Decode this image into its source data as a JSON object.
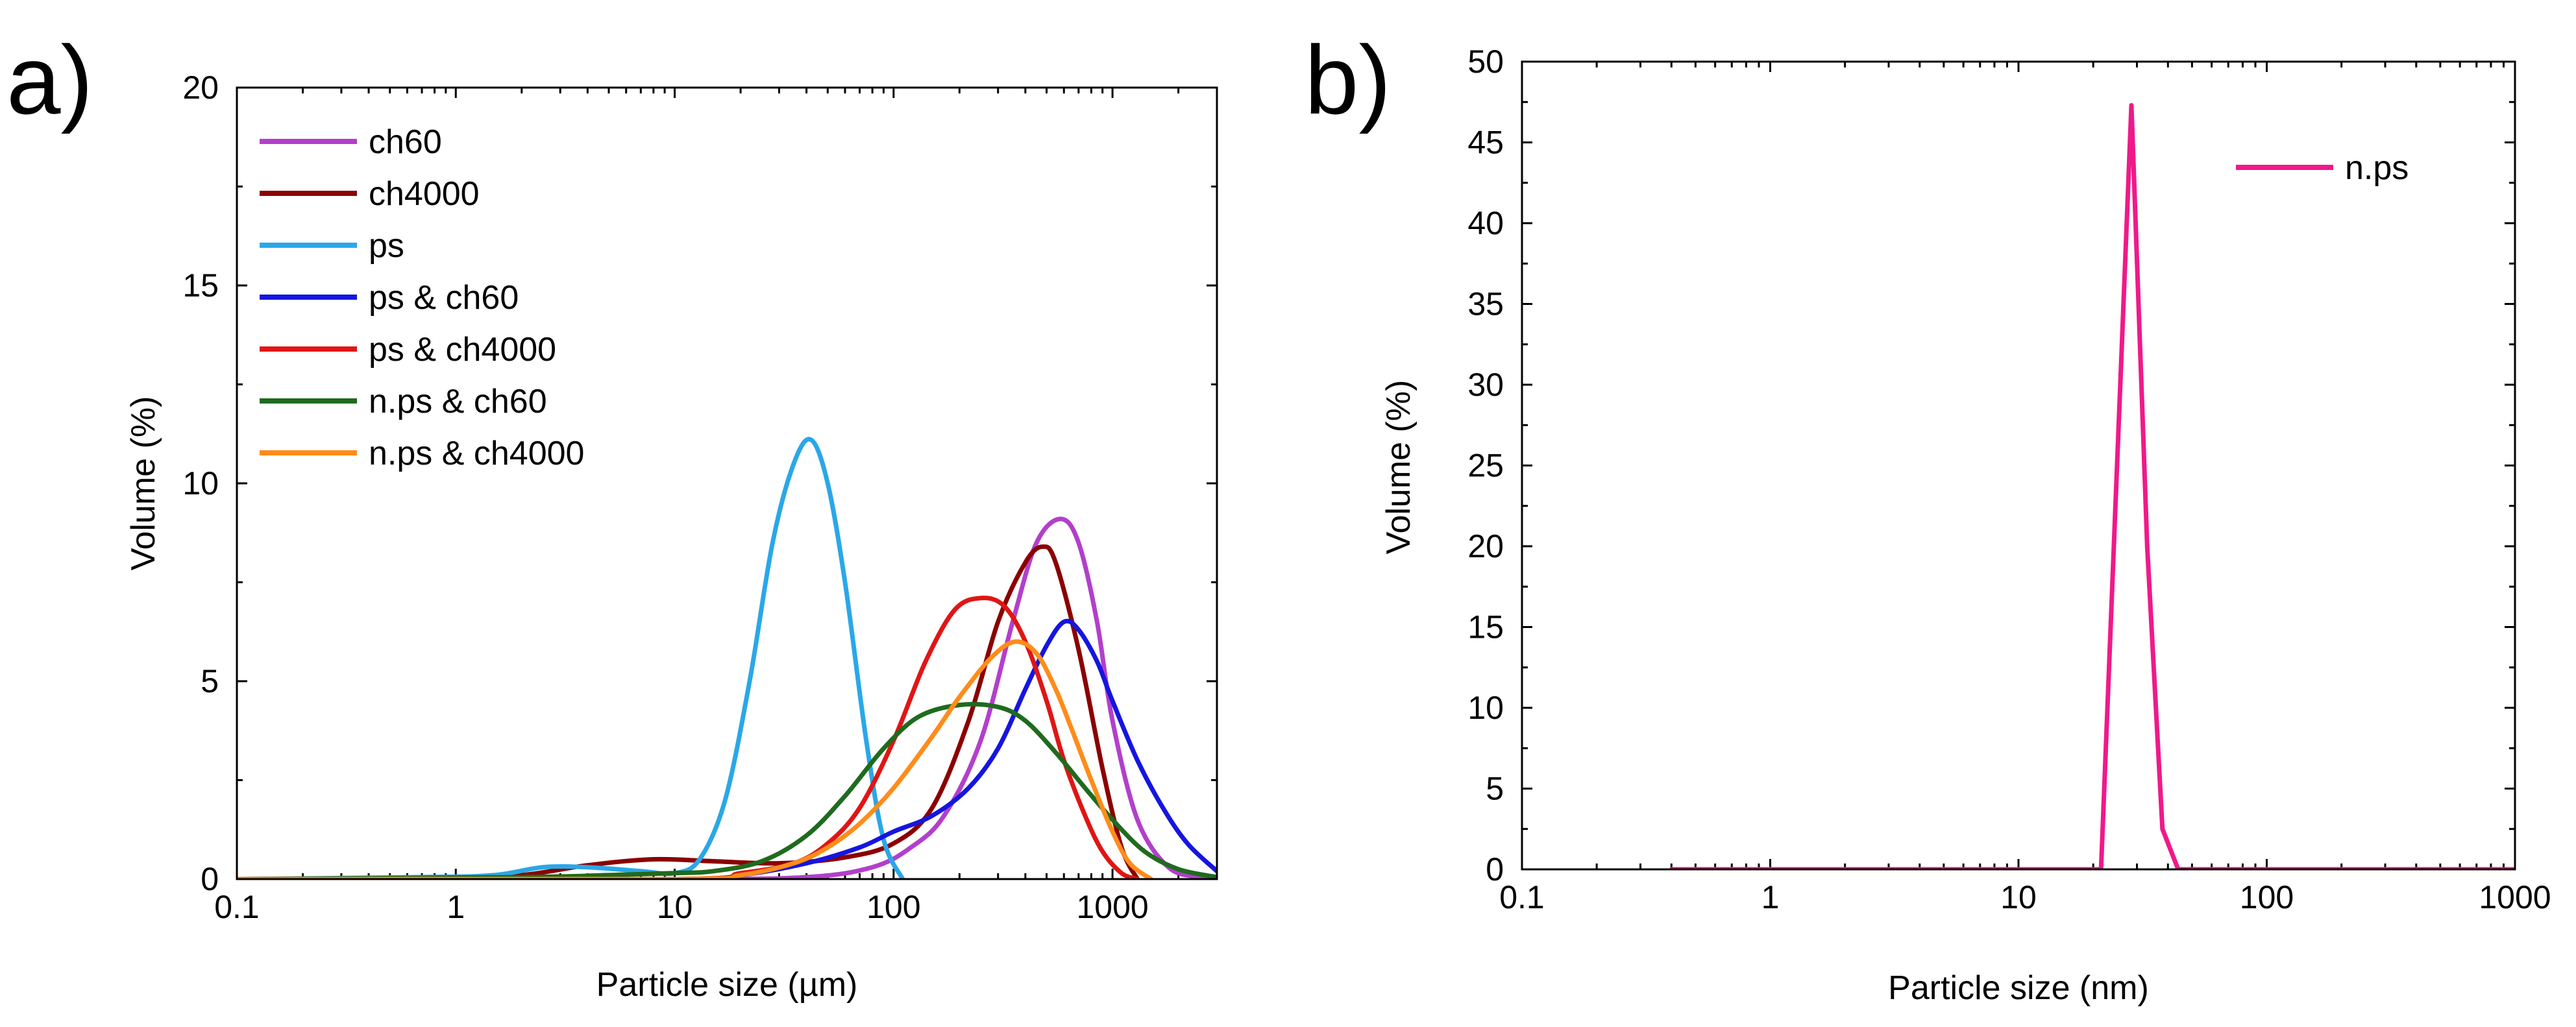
{
  "chart_data": [
    {
      "panel_label": "a)",
      "type": "line",
      "xscale": "log",
      "xlim": [
        0.1,
        3000
      ],
      "ylim": [
        0,
        20
      ],
      "xticks": [
        0.1,
        1,
        10,
        100,
        1000
      ],
      "xtick_labels": [
        "0.1",
        "1",
        "10",
        "100",
        "1000"
      ],
      "yticks": [
        0,
        5,
        10,
        15,
        20
      ],
      "ytick_labels": [
        "0",
        "5",
        "10",
        "15",
        "20"
      ],
      "xlabel": "Particle size (µm)",
      "ylabel": "Volume (%)",
      "legend_position": "top-left",
      "series": [
        {
          "name": "ch60",
          "color": "#B23FCB",
          "x": [
            0.1,
            10,
            40,
            80,
            120,
            170,
            250,
            350,
            450,
            580,
            700,
            850,
            1000,
            1300,
            1800,
            2500,
            3000
          ],
          "y": [
            0,
            0,
            0.05,
            0.3,
            0.8,
            1.6,
            3.5,
            6.5,
            8.5,
            9.1,
            8.5,
            6.5,
            4.0,
            1.5,
            0.3,
            0.05,
            0
          ]
        },
        {
          "name": "ch4000",
          "color": "#8B0000",
          "x": [
            0.1,
            0.8,
            2,
            4,
            8,
            15,
            30,
            60,
            100,
            150,
            220,
            300,
            400,
            480,
            550,
            700,
            900,
            1100,
            1300
          ],
          "y": [
            0,
            0,
            0.1,
            0.35,
            0.5,
            0.45,
            0.4,
            0.55,
            0.9,
            1.8,
            4.0,
            6.5,
            8.0,
            8.4,
            8.0,
            5.8,
            2.8,
            0.8,
            0
          ]
        },
        {
          "name": "ps",
          "color": "#2AA7E8",
          "x": [
            0.1,
            0.7,
            1.5,
            2.5,
            4,
            7,
            10,
            13,
            17,
            22,
            28,
            35,
            42,
            50,
            60,
            75,
            90,
            110
          ],
          "y": [
            0,
            0.05,
            0.1,
            0.3,
            0.3,
            0.2,
            0.15,
            0.5,
            2.0,
            5.0,
            8.5,
            10.5,
            11.1,
            10.0,
            7.5,
            3.5,
            1.0,
            0
          ]
        },
        {
          "name": "ps & ch60",
          "color": "#1515E0",
          "x": [
            0.1,
            10,
            20,
            40,
            70,
            100,
            150,
            220,
            300,
            400,
            500,
            600,
            700,
            850,
            1000,
            1300,
            1700,
            2200,
            3000
          ],
          "y": [
            0,
            0,
            0.1,
            0.4,
            0.8,
            1.2,
            1.6,
            2.3,
            3.3,
            4.8,
            5.9,
            6.5,
            6.3,
            5.5,
            4.5,
            3.0,
            1.8,
            0.9,
            0.2
          ]
        },
        {
          "name": "ps & ch4000",
          "color": "#E01515",
          "x": [
            0.1,
            10,
            20,
            35,
            50,
            70,
            100,
            140,
            190,
            250,
            320,
            400,
            500,
            600,
            750,
            900,
            1100,
            1300
          ],
          "y": [
            0,
            0,
            0.15,
            0.4,
            0.9,
            1.8,
            3.5,
            5.5,
            6.8,
            7.1,
            6.9,
            6.0,
            4.5,
            3.0,
            1.6,
            0.7,
            0.15,
            0
          ]
        },
        {
          "name": "n.ps & ch60",
          "color": "#1E6B1E",
          "x": [
            0.1,
            2,
            5,
            10,
            15,
            25,
            40,
            60,
            90,
            130,
            200,
            300,
            400,
            550,
            750,
            1000,
            1400,
            2000,
            3000
          ],
          "y": [
            0,
            0.05,
            0.1,
            0.15,
            0.2,
            0.45,
            1.1,
            2.1,
            3.3,
            4.1,
            4.4,
            4.35,
            4.0,
            3.2,
            2.3,
            1.5,
            0.7,
            0.25,
            0.05
          ]
        },
        {
          "name": "n.ps & ch4000",
          "color": "#FF8C1A",
          "x": [
            0.1,
            10,
            20,
            35,
            50,
            70,
            100,
            150,
            200,
            280,
            360,
            450,
            550,
            650,
            800,
            1000,
            1200,
            1500
          ],
          "y": [
            0,
            0,
            0.1,
            0.4,
            0.8,
            1.4,
            2.3,
            3.6,
            4.6,
            5.6,
            6.0,
            5.7,
            4.8,
            3.8,
            2.5,
            1.2,
            0.4,
            0
          ]
        }
      ]
    },
    {
      "panel_label": "b)",
      "type": "line",
      "xscale": "log",
      "xlim": [
        0.1,
        1000
      ],
      "ylim": [
        0,
        50
      ],
      "xticks": [
        0.1,
        1,
        10,
        100,
        1000
      ],
      "xtick_labels": [
        "0.1",
        "1",
        "10",
        "100",
        "1000"
      ],
      "yticks": [
        0,
        5,
        10,
        15,
        20,
        25,
        30,
        35,
        40,
        45,
        50
      ],
      "ytick_labels": [
        "0",
        "5",
        "10",
        "15",
        "20",
        "25",
        "30",
        "35",
        "40",
        "45",
        "50"
      ],
      "xlabel": "Particle size (nm)",
      "ylabel": "Volume (%)",
      "legend_position": "top-right",
      "series": [
        {
          "name": "n.ps",
          "color": "#F0198A",
          "x": [
            0.4,
            21.5,
            24.5,
            28.5,
            33,
            38,
            44,
            1000
          ],
          "y": [
            0,
            0,
            22,
            47.3,
            20,
            2.5,
            0,
            0
          ]
        }
      ]
    }
  ]
}
